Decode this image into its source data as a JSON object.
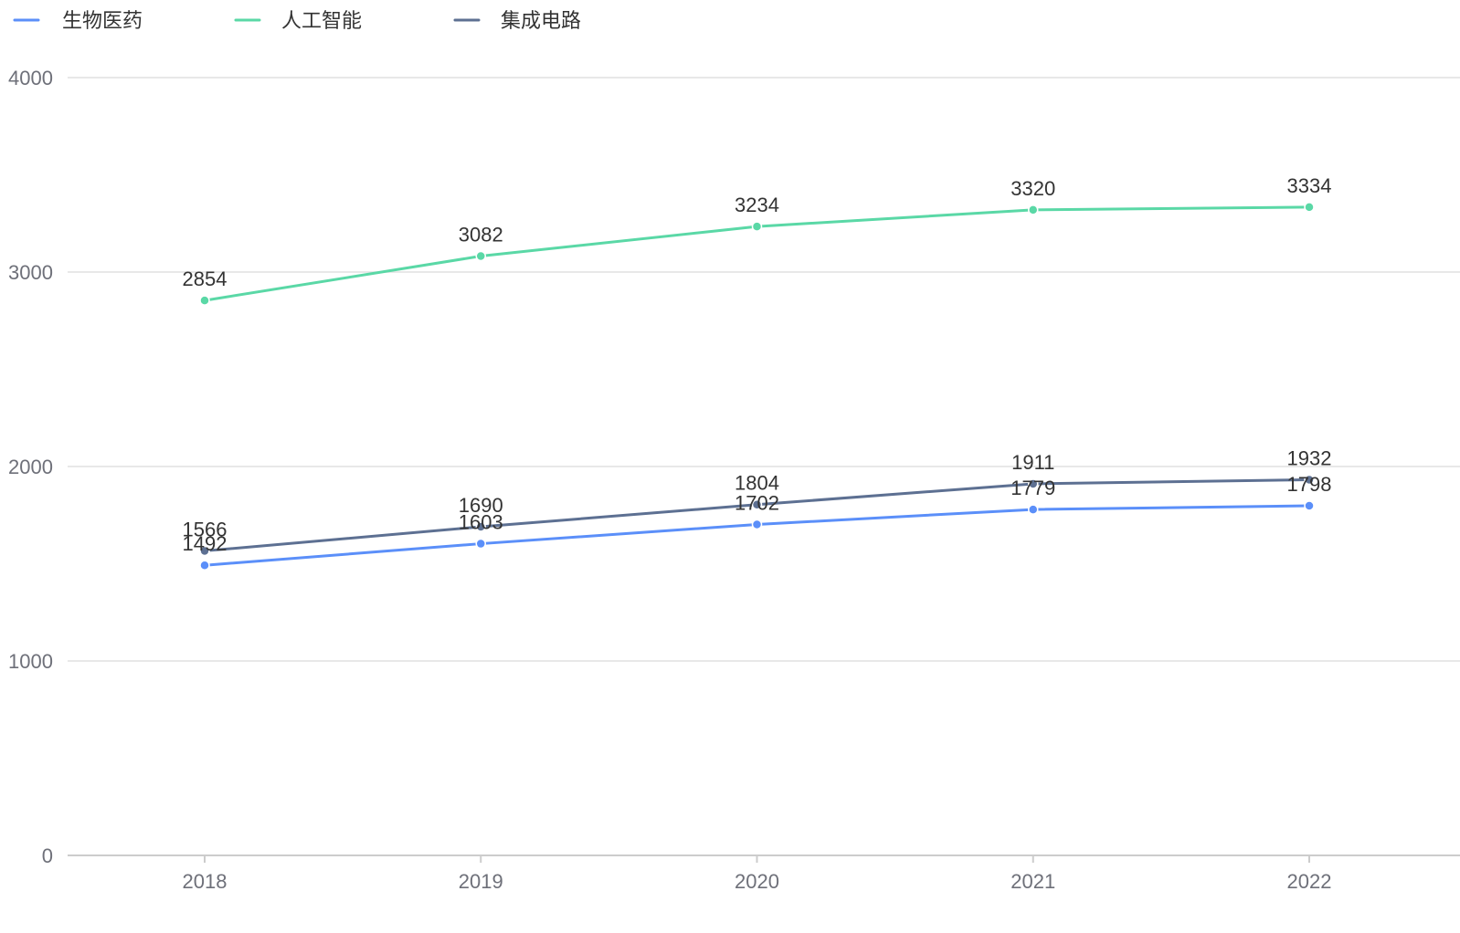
{
  "chart_data": {
    "type": "line",
    "title": "",
    "xlabel": "",
    "ylabel": "",
    "x": [
      "2018",
      "2019",
      "2020",
      "2021",
      "2022"
    ],
    "ylim": [
      0,
      4000
    ],
    "yticks": [
      0,
      1000,
      2000,
      3000,
      4000
    ],
    "grid": true,
    "legend_position": "top-left",
    "series": [
      {
        "name": "生物医药",
        "color": "#5b8ff9",
        "values": [
          1492,
          1603,
          1702,
          1779,
          1798
        ]
      },
      {
        "name": "人工智能",
        "color": "#5ad8a6",
        "values": [
          2854,
          3082,
          3234,
          3320,
          3334
        ]
      },
      {
        "name": "集成电路",
        "color": "#5d7092",
        "values": [
          1566,
          1690,
          1804,
          1911,
          1932
        ]
      }
    ]
  }
}
